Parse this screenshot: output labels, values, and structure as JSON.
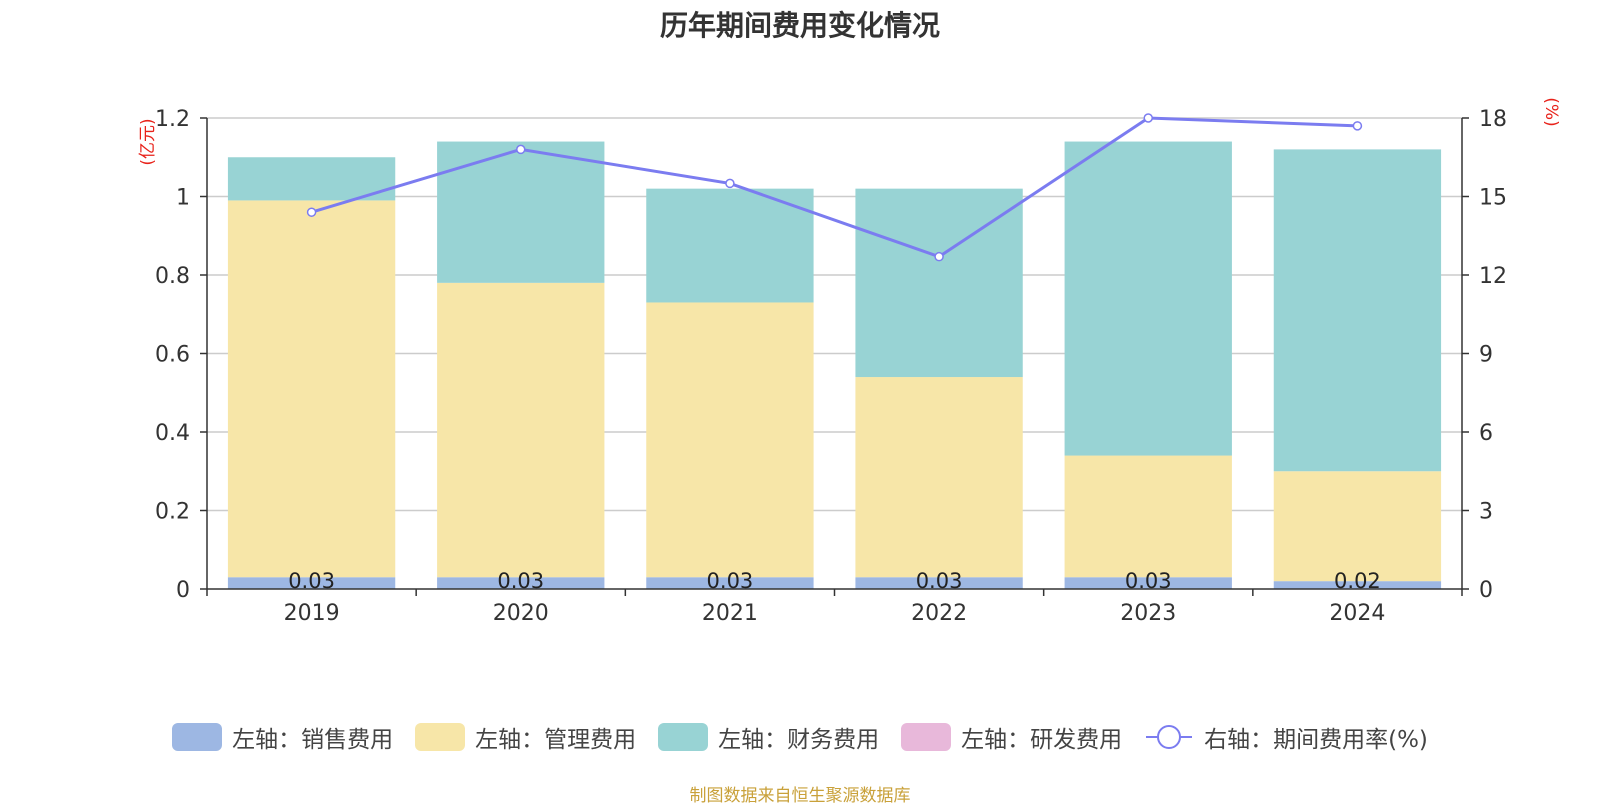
{
  "chart_data": {
    "type": "bar",
    "title": "历年期间费用变化情况",
    "categories": [
      "2019",
      "2020",
      "2021",
      "2022",
      "2023",
      "2024"
    ],
    "stacked": true,
    "left_axis": {
      "unit": "(亿元)",
      "ylim": [
        0,
        1.2
      ],
      "ticks": [
        "0",
        "0.2",
        "0.4",
        "0.6",
        "0.8",
        "1",
        "1.2"
      ]
    },
    "right_axis": {
      "unit": "(%)",
      "ylim": [
        0,
        18
      ],
      "ticks": [
        "0",
        "3",
        "6",
        "9",
        "12",
        "15",
        "18"
      ]
    },
    "series": [
      {
        "name": "左轴：销售费用",
        "type": "bar",
        "color": "#9db7e3",
        "values": [
          0.03,
          0.03,
          0.03,
          0.03,
          0.03,
          0.02
        ],
        "labels": [
          "0.03",
          "0.03",
          "0.03",
          "0.03",
          "0.03",
          "0.02"
        ]
      },
      {
        "name": "左轴：管理费用",
        "type": "bar",
        "color": "#f7e6a8",
        "values": [
          0.96,
          0.75,
          0.7,
          0.51,
          0.31,
          0.28
        ]
      },
      {
        "name": "左轴：财务费用",
        "type": "bar",
        "color": "#98d3d4",
        "values": [
          0.11,
          0.36,
          0.29,
          0.48,
          0.8,
          0.82
        ]
      },
      {
        "name": "左轴：研发费用",
        "type": "bar",
        "color": "#e8b8da",
        "values": [
          0,
          0,
          0,
          0,
          0,
          0
        ]
      },
      {
        "name": "右轴：期间费用率(%)",
        "type": "line",
        "axis": "right",
        "color": "#7b7cf0",
        "values": [
          14.4,
          16.8,
          15.5,
          12.7,
          18.0,
          17.7
        ]
      }
    ],
    "legend_position": "bottom"
  },
  "footer": "制图数据来自恒生聚源数据库"
}
